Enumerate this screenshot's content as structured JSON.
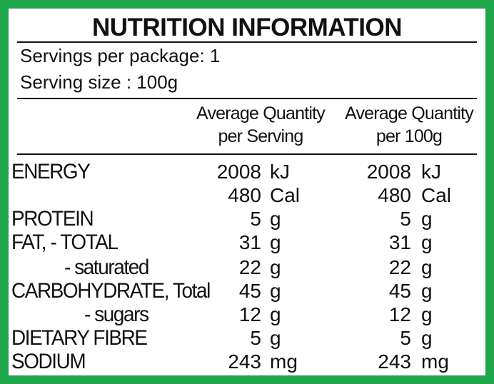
{
  "title": "NUTRITION INFORMATION",
  "servings_per_package": "Servings per package: 1",
  "serving_size": "Serving size : 100g",
  "column_headers": [
    [
      "Average Quantity",
      "per Serving"
    ],
    [
      "Average Quantity",
      "per 100g"
    ]
  ],
  "rows": [
    {
      "label": "ENERGY",
      "indent": 0,
      "serving": "2008",
      "serving_unit": "kJ",
      "per100": "2008",
      "per100_unit": "kJ"
    },
    {
      "label": "",
      "indent": 0,
      "serving": "480",
      "serving_unit": "Cal",
      "per100": "480",
      "per100_unit": "Cal"
    },
    {
      "label": "PROTEIN",
      "indent": 0,
      "serving": "5",
      "serving_unit": "g",
      "per100": "5",
      "per100_unit": "g"
    },
    {
      "label": "FAT, - TOTAL",
      "indent": 0,
      "serving": "31",
      "serving_unit": "g",
      "per100": "31",
      "per100_unit": "g"
    },
    {
      "label": "- saturated",
      "indent": 1,
      "serving": "22",
      "serving_unit": "g",
      "per100": "22",
      "per100_unit": "g"
    },
    {
      "label": "CARBOHYDRATE, Total",
      "indent": 0,
      "serving": "45",
      "serving_unit": "g",
      "per100": "45",
      "per100_unit": "g"
    },
    {
      "label": "- sugars",
      "indent": 2,
      "serving": "12",
      "serving_unit": "g",
      "per100": "12",
      "per100_unit": "g"
    },
    {
      "label": "DIETARY FIBRE",
      "indent": 0,
      "serving": "5",
      "serving_unit": "g",
      "per100": "5",
      "per100_unit": "g"
    },
    {
      "label": "SODIUM",
      "indent": 0,
      "serving": "243",
      "serving_unit": "mg",
      "per100": "243",
      "per100_unit": "mg"
    }
  ],
  "colors": {
    "border": "#1fa64a",
    "text": "#111111",
    "background": "#ffffff"
  }
}
